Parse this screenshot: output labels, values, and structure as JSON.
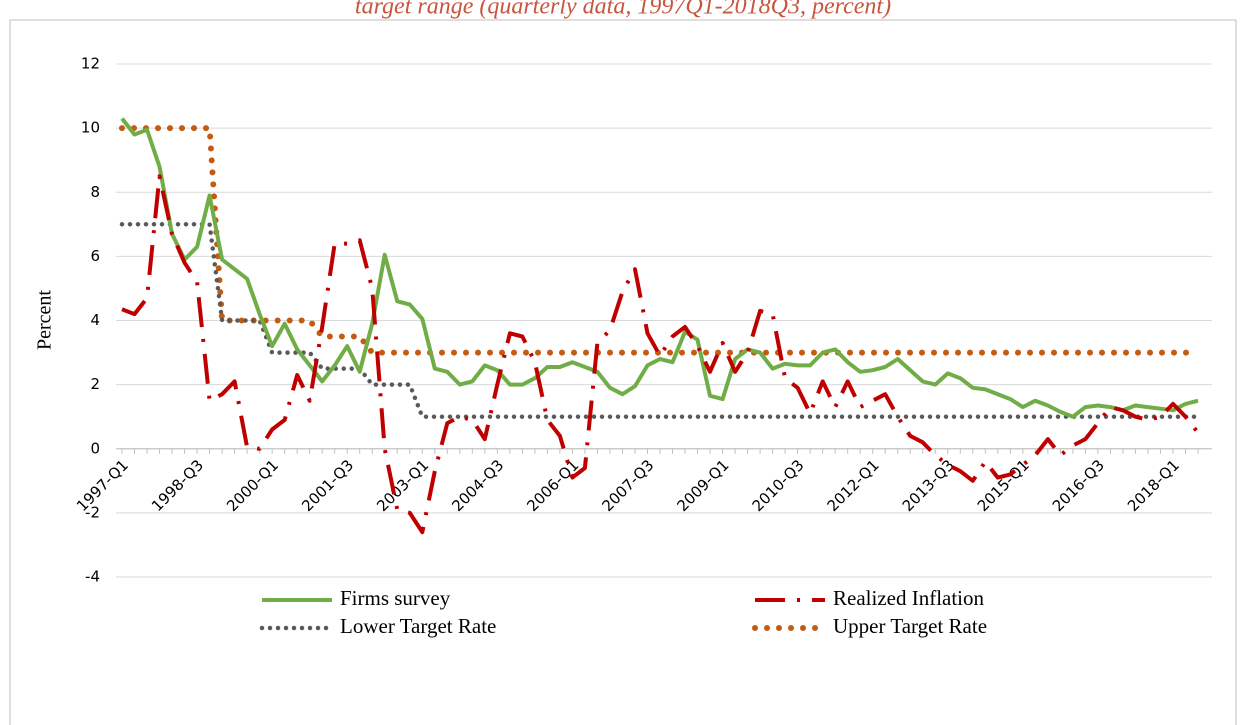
{
  "chart_data": {
    "type": "line",
    "title": "target range (quarterly data, 1997Q1-2018Q3, percent)",
    "y_label": "Percent",
    "categories": [
      "1997-Q1",
      null,
      null,
      null,
      null,
      null,
      "1998-Q3",
      null,
      null,
      null,
      null,
      null,
      "2000-Q1",
      null,
      null,
      null,
      null,
      null,
      "2001-Q3",
      null,
      null,
      null,
      null,
      null,
      "2003-Q1",
      null,
      null,
      null,
      null,
      null,
      "2004-Q3",
      null,
      null,
      null,
      null,
      null,
      "2006-Q1",
      null,
      null,
      null,
      null,
      null,
      "2007-Q3",
      null,
      null,
      null,
      null,
      null,
      "2009-Q1",
      null,
      null,
      null,
      null,
      null,
      "2010-Q3",
      null,
      null,
      null,
      null,
      null,
      "2012-Q1",
      null,
      null,
      null,
      null,
      null,
      "2013-Q3",
      null,
      null,
      null,
      null,
      null,
      "2015-Q1",
      null,
      null,
      null,
      null,
      null,
      "2016-Q3",
      null,
      null,
      null,
      null,
      null,
      "2018-Q1",
      null,
      null
    ],
    "series": [
      {
        "name": "Firms survey",
        "color": "#70ad47",
        "style": "solid",
        "values": [
          10.3,
          9.8,
          9.95,
          8.8,
          6.7,
          5.9,
          6.3,
          7.9,
          5.9,
          5.6,
          5.3,
          4.2,
          3.2,
          3.9,
          3.1,
          2.6,
          2.1,
          2.6,
          3.2,
          2.4,
          3.9,
          6.05,
          4.6,
          4.5,
          4.05,
          2.5,
          2.4,
          2.0,
          2.1,
          2.6,
          2.45,
          2.0,
          2.0,
          2.2,
          2.55,
          2.55,
          2.7,
          2.55,
          2.4,
          1.9,
          1.7,
          1.95,
          2.6,
          2.8,
          2.7,
          3.65,
          3.4,
          1.65,
          1.55,
          2.8,
          3.1,
          3.0,
          2.5,
          2.65,
          2.6,
          2.6,
          3.0,
          3.1,
          2.7,
          2.4,
          2.45,
          2.55,
          2.8,
          2.45,
          2.1,
          2.0,
          2.35,
          2.2,
          1.9,
          1.85,
          1.7,
          1.55,
          1.3,
          1.5,
          1.35,
          1.15,
          1.0,
          1.3,
          1.35,
          1.3,
          1.2,
          1.35,
          1.3,
          1.25,
          1.2,
          1.4,
          1.5
        ]
      },
      {
        "name": "Realized Inflation",
        "color": "#c00000",
        "style": "dashdot",
        "values": [
          4.35,
          4.2,
          4.7,
          8.5,
          6.7,
          5.8,
          5.2,
          1.5,
          1.7,
          2.1,
          0.05,
          0,
          0.6,
          0.9,
          2.3,
          1.5,
          3.8,
          6.4,
          6.4,
          6.5,
          5.0,
          0.0,
          -1.9,
          -2.0,
          -2.6,
          -0.7,
          0.8,
          1.0,
          0.9,
          0.3,
          2.0,
          3.6,
          3.5,
          2.7,
          0.9,
          0.4,
          -0.9,
          -0.6,
          3.3,
          3.7,
          4.9,
          5.6,
          3.6,
          2.9,
          3.5,
          3.8,
          3.2,
          2.4,
          3.3,
          2.4,
          3.0,
          4.3,
          4.2,
          2.2,
          1.9,
          1.1,
          2.1,
          1.3,
          2.1,
          1.3,
          1.5,
          1.7,
          1.0,
          0.4,
          0.2,
          -0.2,
          -0.5,
          -0.7,
          -1.0,
          -0.4,
          -0.9,
          -0.8,
          -0.5,
          -0.2,
          0.3,
          -0.2,
          0.1,
          0.3,
          0.8,
          1.3,
          1.2,
          1.0,
          0.9,
          1.0,
          1.4,
          1.0,
          0.5
        ]
      },
      {
        "name": "Lower Target Rate",
        "color": "#595959",
        "style": "dotted",
        "values": [
          7,
          7,
          7,
          7,
          7,
          7,
          7,
          7,
          4,
          4,
          4,
          4,
          3,
          3,
          3,
          3,
          2.5,
          2.5,
          2.5,
          2.5,
          2,
          2,
          2,
          2,
          1,
          1,
          1,
          1,
          1,
          1,
          1,
          1,
          1,
          1,
          1,
          1,
          1,
          1,
          1,
          1,
          1,
          1,
          1,
          1,
          1,
          1,
          1,
          1,
          1,
          1,
          1,
          1,
          1,
          1,
          1,
          1,
          1,
          1,
          1,
          1,
          1,
          1,
          1,
          1,
          1,
          1,
          1,
          1,
          1,
          1,
          1,
          1,
          1,
          1,
          1,
          1,
          1,
          1,
          1,
          1,
          1,
          1,
          1,
          1,
          1,
          1,
          1
        ]
      },
      {
        "name": "Upper Target Rate",
        "color": "#c55a11",
        "style": "bigdotted",
        "values": [
          10,
          10,
          10,
          10,
          10,
          10,
          10,
          10,
          4,
          4,
          4,
          4,
          4,
          4,
          4,
          4,
          3.5,
          3.5,
          3.5,
          3.5,
          3,
          3,
          3,
          3,
          3,
          3,
          3,
          3,
          3,
          3,
          3,
          3,
          3,
          3,
          3,
          3,
          3,
          3,
          3,
          3,
          3,
          3,
          3,
          3,
          3,
          3,
          3,
          3,
          3,
          3,
          3,
          3,
          3,
          3,
          3,
          3,
          3,
          3,
          3,
          3,
          3,
          3,
          3,
          3,
          3,
          3,
          3,
          3,
          3,
          3,
          3,
          3,
          3,
          3,
          3,
          3,
          3,
          3,
          3,
          3,
          3,
          3,
          3,
          3,
          3,
          3,
          3
        ]
      }
    ],
    "ylim": [
      -4,
      12
    ],
    "yticks": [
      -4,
      -2,
      0,
      2,
      4,
      6,
      8,
      10,
      12
    ],
    "grid": true,
    "legend": "bottom"
  }
}
